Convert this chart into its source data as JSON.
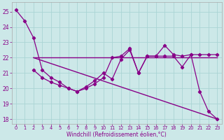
{
  "xlabel": "Windchill (Refroidissement éolien,°C)",
  "background_color": "#cce8e8",
  "grid_color": "#aad4d4",
  "line_color": "#880088",
  "xlim_min": -0.5,
  "xlim_max": 23.5,
  "ylim_min": 17.7,
  "ylim_max": 25.6,
  "yticks": [
    18,
    19,
    20,
    21,
    22,
    23,
    24,
    25
  ],
  "xticks": [
    0,
    1,
    2,
    3,
    4,
    5,
    6,
    7,
    8,
    9,
    10,
    11,
    12,
    13,
    14,
    15,
    16,
    17,
    18,
    19,
    20,
    21,
    22,
    23
  ],
  "line1_x": [
    0,
    1,
    2,
    3,
    4,
    5,
    6,
    7,
    8,
    9,
    10,
    11,
    12,
    13,
    14,
    15,
    16,
    17,
    18,
    19,
    20,
    21,
    22,
    23
  ],
  "line1_y": [
    25.1,
    24.4,
    23.3,
    21.2,
    20.7,
    20.4,
    20.0,
    19.8,
    20.0,
    20.3,
    20.7,
    22.0,
    22.1,
    22.6,
    21.0,
    22.1,
    22.1,
    22.1,
    22.1,
    21.4,
    22.2,
    19.8,
    18.5,
    18.0
  ],
  "line2_x": [
    2,
    3,
    4,
    5,
    6,
    7,
    8,
    9,
    10,
    11,
    12,
    13,
    14,
    15,
    16,
    17,
    18,
    19,
    20,
    21,
    22,
    23
  ],
  "line2_y": [
    21.2,
    20.7,
    20.4,
    20.2,
    20.0,
    19.8,
    20.1,
    20.5,
    21.0,
    20.6,
    21.9,
    22.5,
    21.0,
    22.1,
    22.1,
    22.8,
    22.2,
    22.1,
    22.2,
    22.2,
    22.2,
    22.2
  ],
  "line3_x": [
    2,
    23
  ],
  "line3_y": [
    22.0,
    22.0
  ],
  "line4_x": [
    2,
    23
  ],
  "line4_y": [
    22.0,
    18.0
  ]
}
